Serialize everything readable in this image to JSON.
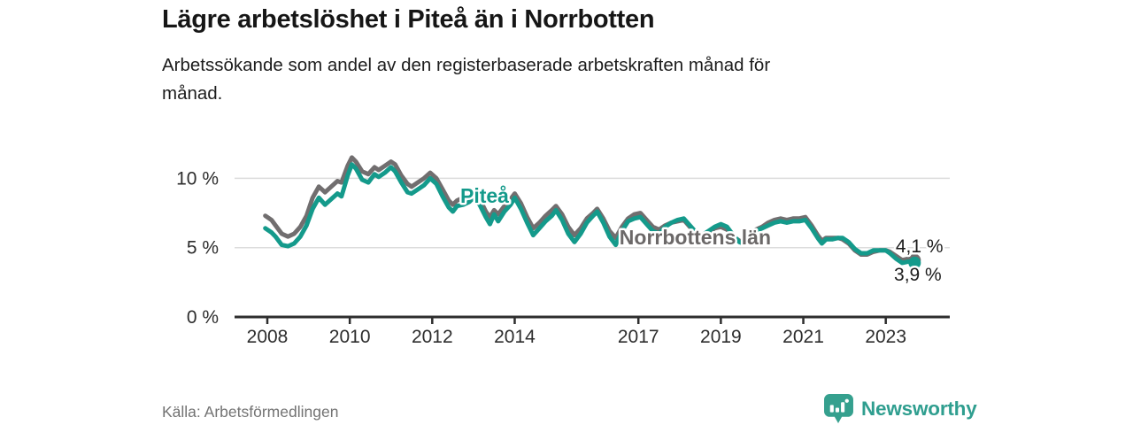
{
  "header": {
    "title": "Lägre arbetslöshet i Piteå än i Norrbotten",
    "subtitle": "Arbetssökande som andel av den registerbaserade arbetskraften månad för månad."
  },
  "footer": {
    "source": "Källa: Arbetsförmedlingen",
    "brand": {
      "name": "Newsworthy",
      "color": "#2f9e8f",
      "icon": "newsworthy-speech-bubble-bars-icon"
    }
  },
  "chart_data": {
    "type": "line",
    "title": "Lägre arbetslöshet i Piteå än i Norrbotten",
    "subtitle": "Arbetssökande som andel av den registerbaserade arbetskraften månad för månad.",
    "unit": "%",
    "grid": true,
    "colors": {
      "axis": "#2e2e2e",
      "gridline": "#dcdcdc",
      "tick_label": "#2d2d2d"
    },
    "x_axis": {
      "range": [
        2007.8,
        2024.3
      ],
      "ticks": [
        2008,
        2010,
        2012,
        2014,
        2017,
        2019,
        2021,
        2023
      ]
    },
    "y_axis": {
      "range": [
        0,
        12.8
      ],
      "ticks": [
        {
          "value": 0,
          "label": "0 %"
        },
        {
          "value": 5,
          "label": "5 %"
        },
        {
          "value": 10,
          "label": "10 %"
        }
      ]
    },
    "series": [
      {
        "name": "Norrbottens län",
        "color": "#716e6f",
        "end_label": "4,1 %",
        "end_value": 4.1,
        "points": [
          [
            2007.95,
            7.3
          ],
          [
            2008.1,
            7.0
          ],
          [
            2008.2,
            6.6
          ],
          [
            2008.35,
            6.0
          ],
          [
            2008.5,
            5.8
          ],
          [
            2008.65,
            6.0
          ],
          [
            2008.8,
            6.5
          ],
          [
            2008.95,
            7.3
          ],
          [
            2009.1,
            8.6
          ],
          [
            2009.25,
            9.4
          ],
          [
            2009.4,
            9.0
          ],
          [
            2009.55,
            9.4
          ],
          [
            2009.7,
            9.8
          ],
          [
            2009.8,
            9.7
          ],
          [
            2009.95,
            10.9
          ],
          [
            2010.05,
            11.5
          ],
          [
            2010.15,
            11.2
          ],
          [
            2010.3,
            10.5
          ],
          [
            2010.45,
            10.3
          ],
          [
            2010.6,
            10.8
          ],
          [
            2010.7,
            10.6
          ],
          [
            2010.85,
            10.9
          ],
          [
            2011.0,
            11.2
          ],
          [
            2011.1,
            11.0
          ],
          [
            2011.25,
            10.2
          ],
          [
            2011.4,
            9.6
          ],
          [
            2011.5,
            9.4
          ],
          [
            2011.65,
            9.7
          ],
          [
            2011.8,
            10.0
          ],
          [
            2011.95,
            10.4
          ],
          [
            2012.1,
            10.0
          ],
          [
            2012.25,
            9.2
          ],
          [
            2012.4,
            8.4
          ],
          [
            2012.5,
            8.1
          ],
          [
            2012.6,
            8.4
          ],
          [
            2012.75,
            8.6
          ],
          [
            2012.9,
            8.8
          ],
          [
            2013.0,
            9.0
          ],
          [
            2013.15,
            8.5
          ],
          [
            2013.3,
            7.6
          ],
          [
            2013.4,
            7.2
          ],
          [
            2013.5,
            7.7
          ],
          [
            2013.6,
            7.4
          ],
          [
            2013.75,
            8.0
          ],
          [
            2013.9,
            8.5
          ],
          [
            2014.0,
            8.9
          ],
          [
            2014.15,
            8.2
          ],
          [
            2014.3,
            7.2
          ],
          [
            2014.45,
            6.4
          ],
          [
            2014.6,
            6.8
          ],
          [
            2014.75,
            7.3
          ],
          [
            2014.9,
            7.7
          ],
          [
            2015.0,
            8.0
          ],
          [
            2015.15,
            7.4
          ],
          [
            2015.3,
            6.5
          ],
          [
            2015.45,
            5.9
          ],
          [
            2015.6,
            6.4
          ],
          [
            2015.75,
            7.1
          ],
          [
            2015.9,
            7.5
          ],
          [
            2016.0,
            7.8
          ],
          [
            2016.15,
            7.1
          ],
          [
            2016.3,
            6.2
          ],
          [
            2016.45,
            5.7
          ],
          [
            2016.6,
            6.5
          ],
          [
            2016.75,
            7.1
          ],
          [
            2016.9,
            7.4
          ],
          [
            2017.05,
            7.5
          ],
          [
            2017.2,
            7.0
          ],
          [
            2017.35,
            6.5
          ],
          [
            2017.5,
            6.3
          ],
          [
            2017.65,
            6.6
          ],
          [
            2017.8,
            6.8
          ],
          [
            2017.95,
            6.9
          ],
          [
            2018.1,
            7.0
          ],
          [
            2018.25,
            6.5
          ],
          [
            2018.4,
            6.0
          ],
          [
            2018.55,
            5.8
          ],
          [
            2018.7,
            6.1
          ],
          [
            2018.85,
            6.4
          ],
          [
            2019.0,
            6.5
          ],
          [
            2019.15,
            6.3
          ],
          [
            2019.3,
            5.8
          ],
          [
            2019.45,
            5.5
          ],
          [
            2019.55,
            5.4
          ],
          [
            2019.7,
            6.0
          ],
          [
            2019.85,
            6.3
          ],
          [
            2020.0,
            6.5
          ],
          [
            2020.15,
            6.8
          ],
          [
            2020.3,
            7.0
          ],
          [
            2020.45,
            7.1
          ],
          [
            2020.6,
            7.0
          ],
          [
            2020.75,
            7.1
          ],
          [
            2020.9,
            7.1
          ],
          [
            2021.05,
            7.2
          ],
          [
            2021.2,
            6.6
          ],
          [
            2021.35,
            5.9
          ],
          [
            2021.45,
            5.5
          ],
          [
            2021.55,
            5.7
          ],
          [
            2021.7,
            5.7
          ],
          [
            2021.85,
            5.7
          ],
          [
            2021.95,
            5.6
          ],
          [
            2022.1,
            5.3
          ],
          [
            2022.25,
            4.8
          ],
          [
            2022.4,
            4.5
          ],
          [
            2022.55,
            4.5
          ],
          [
            2022.7,
            4.7
          ],
          [
            2022.85,
            4.8
          ],
          [
            2023.0,
            4.8
          ],
          [
            2023.1,
            4.7
          ],
          [
            2023.25,
            4.4
          ],
          [
            2023.4,
            4.1
          ],
          [
            2023.55,
            4.2
          ],
          [
            2023.7,
            4.1
          ]
        ]
      },
      {
        "name": "Piteå",
        "color": "#149a8b",
        "end_label": "3,9 %",
        "end_value": 3.9,
        "points": [
          [
            2007.95,
            6.4
          ],
          [
            2008.1,
            6.1
          ],
          [
            2008.2,
            5.8
          ],
          [
            2008.35,
            5.2
          ],
          [
            2008.5,
            5.1
          ],
          [
            2008.65,
            5.3
          ],
          [
            2008.8,
            5.8
          ],
          [
            2008.95,
            6.6
          ],
          [
            2009.1,
            7.8
          ],
          [
            2009.25,
            8.6
          ],
          [
            2009.4,
            8.1
          ],
          [
            2009.55,
            8.5
          ],
          [
            2009.7,
            8.9
          ],
          [
            2009.8,
            8.7
          ],
          [
            2009.95,
            10.2
          ],
          [
            2010.05,
            11.0
          ],
          [
            2010.15,
            10.7
          ],
          [
            2010.3,
            9.9
          ],
          [
            2010.45,
            9.7
          ],
          [
            2010.6,
            10.3
          ],
          [
            2010.7,
            10.1
          ],
          [
            2010.85,
            10.4
          ],
          [
            2011.0,
            10.8
          ],
          [
            2011.1,
            10.5
          ],
          [
            2011.25,
            9.7
          ],
          [
            2011.4,
            9.0
          ],
          [
            2011.5,
            8.9
          ],
          [
            2011.65,
            9.2
          ],
          [
            2011.8,
            9.5
          ],
          [
            2011.95,
            10.0
          ],
          [
            2012.1,
            9.6
          ],
          [
            2012.25,
            8.7
          ],
          [
            2012.4,
            7.9
          ],
          [
            2012.5,
            7.6
          ],
          [
            2012.6,
            8.0
          ],
          [
            2012.75,
            8.1
          ],
          [
            2012.9,
            8.3
          ],
          [
            2013.0,
            8.6
          ],
          [
            2013.15,
            8.1
          ],
          [
            2013.3,
            7.2
          ],
          [
            2013.4,
            6.7
          ],
          [
            2013.5,
            7.4
          ],
          [
            2013.6,
            6.9
          ],
          [
            2013.75,
            7.6
          ],
          [
            2013.9,
            8.1
          ],
          [
            2014.0,
            8.6
          ],
          [
            2014.15,
            7.8
          ],
          [
            2014.3,
            6.8
          ],
          [
            2014.45,
            5.9
          ],
          [
            2014.6,
            6.4
          ],
          [
            2014.75,
            6.9
          ],
          [
            2014.9,
            7.3
          ],
          [
            2015.0,
            7.7
          ],
          [
            2015.15,
            7.0
          ],
          [
            2015.3,
            6.0
          ],
          [
            2015.45,
            5.4
          ],
          [
            2015.6,
            6.0
          ],
          [
            2015.75,
            6.8
          ],
          [
            2015.9,
            7.3
          ],
          [
            2016.0,
            7.6
          ],
          [
            2016.15,
            6.8
          ],
          [
            2016.3,
            5.8
          ],
          [
            2016.45,
            5.2
          ],
          [
            2016.6,
            6.2
          ],
          [
            2016.75,
            6.9
          ],
          [
            2016.9,
            7.1
          ],
          [
            2017.05,
            7.2
          ],
          [
            2017.2,
            6.7
          ],
          [
            2017.35,
            6.2
          ],
          [
            2017.5,
            6.0
          ],
          [
            2017.65,
            6.5
          ],
          [
            2017.8,
            6.8
          ],
          [
            2017.95,
            7.0
          ],
          [
            2018.1,
            7.1
          ],
          [
            2018.25,
            6.6
          ],
          [
            2018.4,
            6.1
          ],
          [
            2018.55,
            5.9
          ],
          [
            2018.7,
            6.2
          ],
          [
            2018.85,
            6.5
          ],
          [
            2019.0,
            6.7
          ],
          [
            2019.15,
            6.5
          ],
          [
            2019.3,
            5.9
          ],
          [
            2019.45,
            5.4
          ],
          [
            2019.55,
            5.3
          ],
          [
            2019.7,
            5.9
          ],
          [
            2019.85,
            6.2
          ],
          [
            2020.0,
            6.4
          ],
          [
            2020.15,
            6.6
          ],
          [
            2020.3,
            6.8
          ],
          [
            2020.45,
            6.9
          ],
          [
            2020.6,
            6.8
          ],
          [
            2020.75,
            6.9
          ],
          [
            2020.9,
            6.9
          ],
          [
            2021.05,
            7.0
          ],
          [
            2021.2,
            6.4
          ],
          [
            2021.35,
            5.7
          ],
          [
            2021.45,
            5.3
          ],
          [
            2021.55,
            5.6
          ],
          [
            2021.7,
            5.6
          ],
          [
            2021.85,
            5.7
          ],
          [
            2021.95,
            5.7
          ],
          [
            2022.1,
            5.4
          ],
          [
            2022.25,
            4.9
          ],
          [
            2022.4,
            4.6
          ],
          [
            2022.55,
            4.6
          ],
          [
            2022.7,
            4.8
          ],
          [
            2022.85,
            4.8
          ],
          [
            2023.0,
            4.8
          ],
          [
            2023.1,
            4.6
          ],
          [
            2023.25,
            4.2
          ],
          [
            2023.4,
            3.9
          ],
          [
            2023.55,
            4.0
          ],
          [
            2023.7,
            3.9
          ]
        ]
      }
    ],
    "annotations": [
      {
        "text": "Piteå",
        "x": 2012.68,
        "y": 8.24,
        "color": "#149a8b",
        "bold": true
      },
      {
        "text": "Norrbottens län",
        "x": 2016.54,
        "y": 5.24,
        "color": "#6b6868",
        "bold": true
      },
      {
        "text": "4,1 %",
        "x": 2023.24,
        "y": 4.66,
        "color": "#1c1c1c",
        "bold": false
      },
      {
        "text": "3,9 %",
        "x": 2023.2,
        "y": 2.62,
        "color": "#1c1c1c",
        "bold": false
      }
    ]
  }
}
